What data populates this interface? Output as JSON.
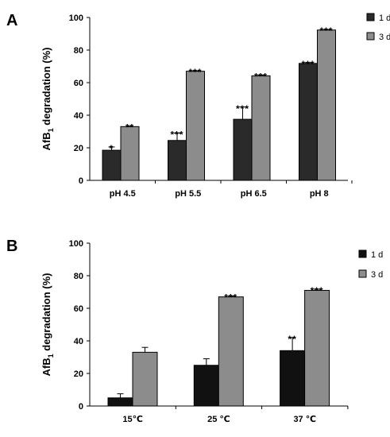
{
  "chart_data": [
    {
      "type": "bar",
      "panel_label": "A",
      "ylabel": {
        "main": "AfB",
        "sub": "1",
        "rest": " degradation (%)"
      },
      "ylim": [
        0,
        100
      ],
      "yticks": [
        0,
        20,
        40,
        60,
        80,
        100
      ],
      "grid": false,
      "legend_position": "top-right",
      "categories": [
        "pH 4.5",
        "pH 5.5",
        "pH 6.5",
        "pH 8"
      ],
      "series": [
        {
          "name": "1 d",
          "color": "#2a2a2a",
          "values": [
            18.5,
            24.5,
            37.5,
            71.8
          ],
          "errors": [
            2.0,
            4.5,
            7.5,
            0.5
          ],
          "significance": [
            "*",
            "***",
            "***",
            "***"
          ]
        },
        {
          "name": "3 d",
          "color": "#8c8c8c",
          "values": [
            33.0,
            67.0,
            64.2,
            92.3
          ],
          "errors": [
            0.3,
            0.3,
            0.5,
            0.3
          ],
          "significance": [
            "**",
            "***",
            "***",
            "***"
          ]
        }
      ]
    },
    {
      "type": "bar",
      "panel_label": "B",
      "ylabel": {
        "main": "AfB",
        "sub": "1",
        "rest": " degradation (%)"
      },
      "ylim": [
        0,
        100
      ],
      "yticks": [
        0,
        20,
        40,
        60,
        80,
        100
      ],
      "grid": false,
      "legend_position": "top-right",
      "categories": [
        "15℃",
        "25 ℃",
        "37 ℃"
      ],
      "series": [
        {
          "name": "1 d",
          "color": "#111111",
          "values": [
            5.0,
            25.0,
            34.0
          ],
          "errors": [
            2.5,
            4.0,
            8.0
          ],
          "significance": [
            "",
            "",
            "**"
          ]
        },
        {
          "name": "3 d",
          "color": "#8c8c8c",
          "values": [
            33.0,
            67.0,
            71.0
          ],
          "errors": [
            3.0,
            0.5,
            0.7
          ],
          "significance": [
            "",
            "***",
            "***"
          ]
        }
      ]
    }
  ]
}
